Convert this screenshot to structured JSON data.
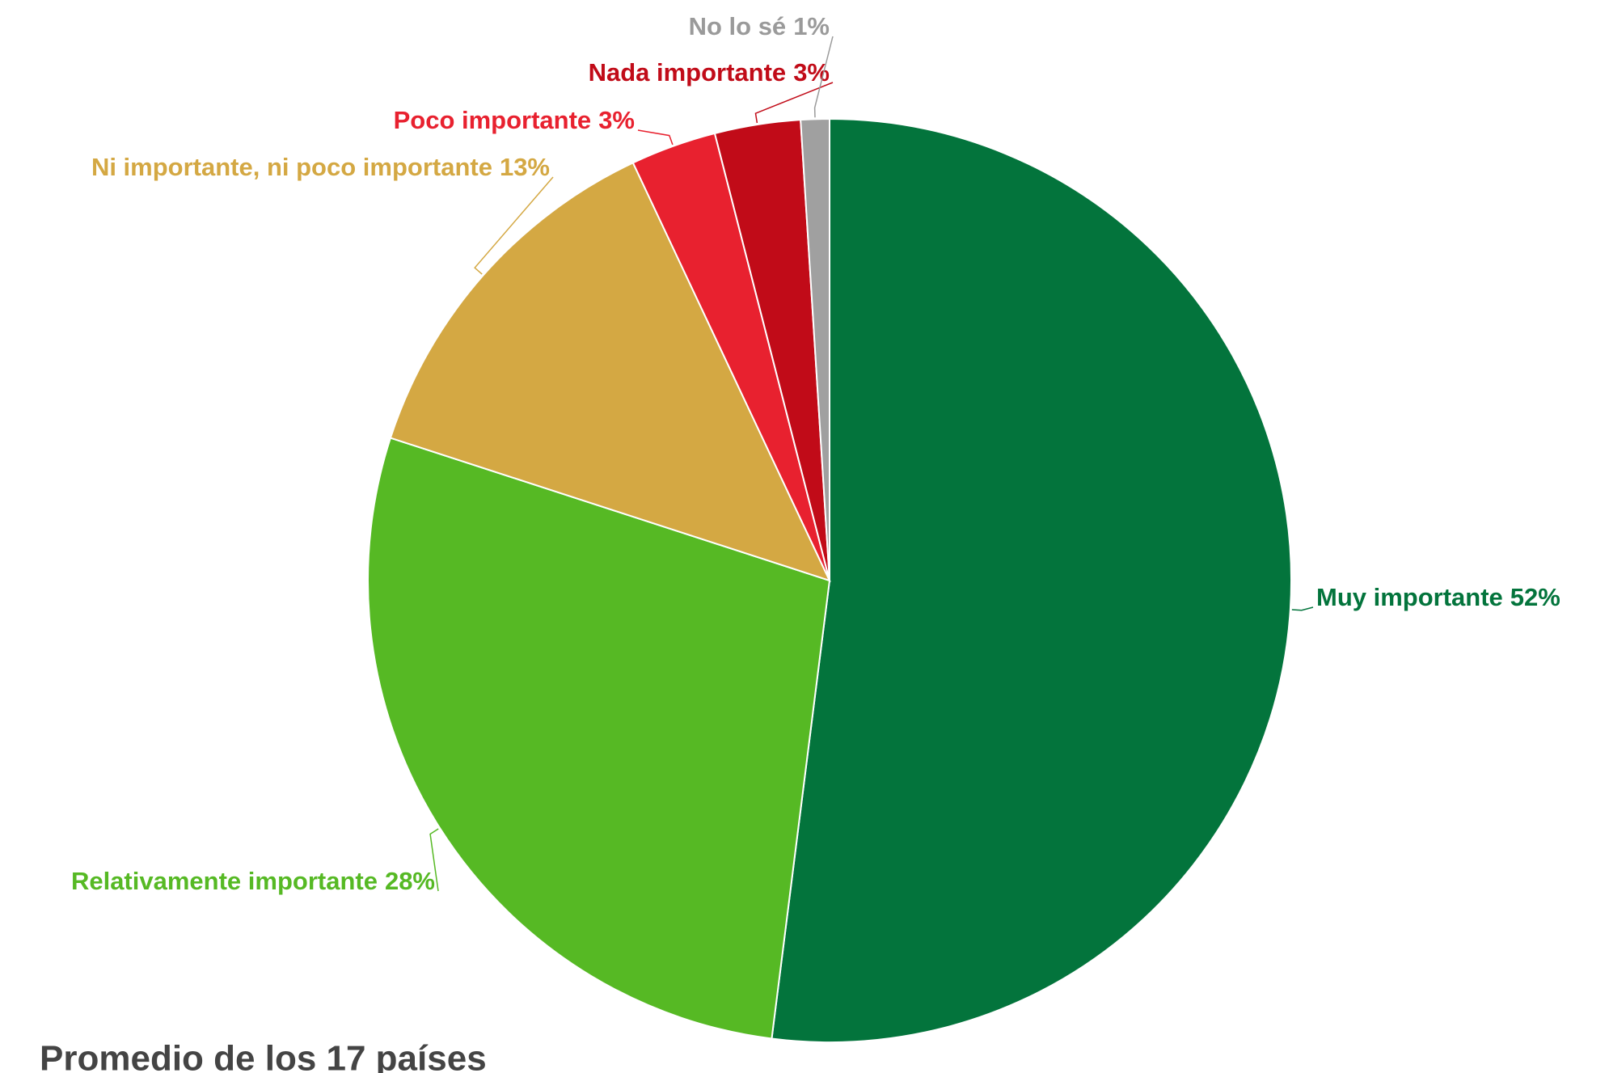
{
  "chart_data": {
    "type": "pie",
    "title": "Promedio de los 17 países",
    "categories": [
      "Muy importante",
      "Relativamente importante",
      "Ni importante, ni poco importante",
      "Poco importante",
      "Nada importante",
      "No lo sé"
    ],
    "values": [
      52,
      28,
      13,
      3,
      3,
      1
    ],
    "value_labels": [
      "52%",
      "28%",
      "13%",
      "3%",
      "3%",
      "1%"
    ],
    "colors": [
      "#03743c",
      "#56b924",
      "#d4a843",
      "#e8212f",
      "#c10b18",
      "#a0a0a0"
    ]
  }
}
